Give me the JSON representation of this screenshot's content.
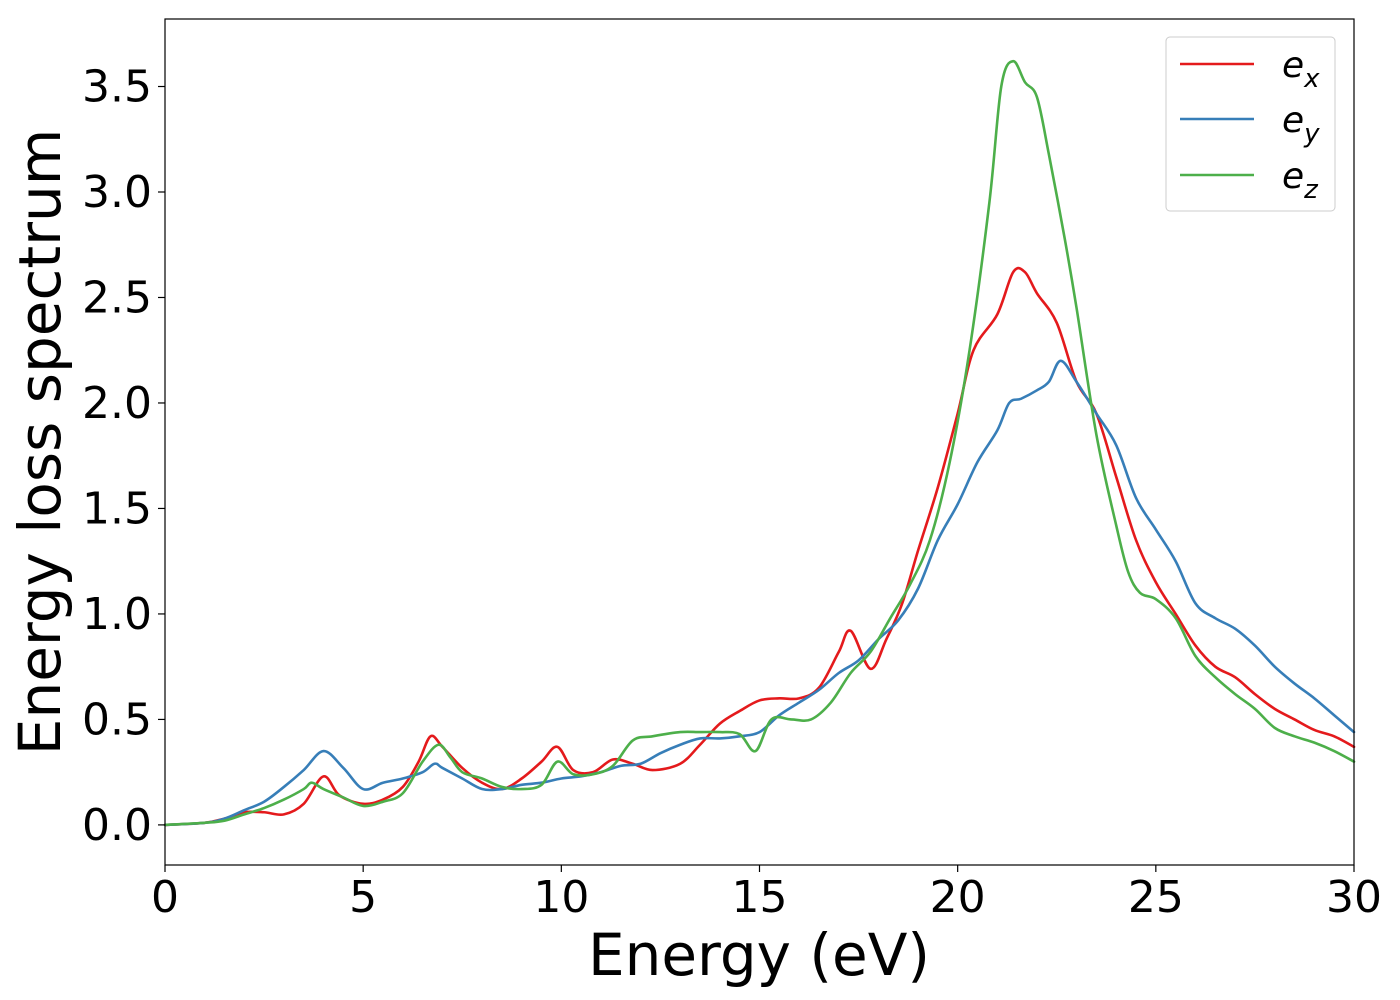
{
  "chart_data": {
    "type": "line",
    "title": "",
    "xlabel": "Energy (eV)",
    "ylabel": "Energy loss spectrum",
    "xlim": [
      0,
      30
    ],
    "ylim": [
      -0.19,
      3.82
    ],
    "xticks": [
      0,
      5,
      10,
      15,
      20,
      25,
      30
    ],
    "yticks": [
      0.0,
      0.5,
      1.0,
      1.5,
      2.0,
      2.5,
      3.0,
      3.5
    ],
    "xtick_labels": [
      "0",
      "5",
      "10",
      "15",
      "20",
      "25",
      "30"
    ],
    "ytick_labels": [
      "0.0",
      "0.5",
      "1.0",
      "1.5",
      "2.0",
      "2.5",
      "3.0",
      "3.5"
    ],
    "grid": false,
    "legend_position": "top-right",
    "series": [
      {
        "name": "e_x",
        "label_base": "e",
        "label_sub": "x",
        "color": "#e41a1c",
        "x": [
          0,
          1,
          1.5,
          2,
          2.5,
          3,
          3.5,
          4,
          4.4,
          5,
          5.5,
          6,
          6.4,
          6.7,
          7,
          7.5,
          8,
          8.5,
          9,
          9.5,
          9.9,
          10.3,
          10.8,
          11.3,
          11.8,
          12.3,
          13,
          13.5,
          14,
          14.5,
          15,
          15.5,
          16,
          16.5,
          17,
          17.3,
          17.8,
          18.2,
          18.6,
          19,
          19.5,
          20,
          20.4,
          21,
          21.4,
          21.7,
          22,
          22.5,
          23,
          23.5,
          24,
          24.5,
          25,
          25.5,
          26,
          26.5,
          27,
          27.5,
          28,
          28.5,
          29,
          29.5,
          30
        ],
        "y": [
          0.0,
          0.01,
          0.03,
          0.06,
          0.06,
          0.05,
          0.1,
          0.23,
          0.14,
          0.1,
          0.12,
          0.18,
          0.3,
          0.42,
          0.37,
          0.27,
          0.2,
          0.17,
          0.22,
          0.3,
          0.37,
          0.26,
          0.25,
          0.31,
          0.29,
          0.26,
          0.29,
          0.38,
          0.48,
          0.54,
          0.59,
          0.6,
          0.6,
          0.65,
          0.82,
          0.92,
          0.74,
          0.88,
          1.05,
          1.3,
          1.6,
          1.95,
          2.25,
          2.42,
          2.62,
          2.62,
          2.52,
          2.38,
          2.1,
          1.95,
          1.65,
          1.35,
          1.15,
          1.0,
          0.85,
          0.75,
          0.7,
          0.62,
          0.55,
          0.5,
          0.45,
          0.42,
          0.37
        ]
      },
      {
        "name": "e_y",
        "label_base": "e",
        "label_sub": "y",
        "color": "#377eb8",
        "x": [
          0,
          1,
          1.5,
          2,
          2.5,
          3,
          3.5,
          4,
          4.5,
          5,
          5.5,
          6,
          6.5,
          6.8,
          7,
          7.5,
          8,
          8.5,
          9,
          9.5,
          10,
          10.5,
          11,
          11.5,
          12,
          12.5,
          13,
          13.5,
          14,
          14.5,
          15,
          15.5,
          16,
          16.5,
          17,
          17.5,
          18,
          18.5,
          19,
          19.5,
          20,
          20.5,
          21,
          21.3,
          21.6,
          22,
          22.3,
          22.6,
          23,
          23.5,
          24,
          24.5,
          25,
          25.5,
          26,
          26.5,
          27,
          27.5,
          28,
          28.5,
          29,
          29.5,
          30
        ],
        "y": [
          0.0,
          0.01,
          0.03,
          0.07,
          0.11,
          0.18,
          0.26,
          0.35,
          0.27,
          0.17,
          0.2,
          0.22,
          0.25,
          0.29,
          0.27,
          0.22,
          0.17,
          0.17,
          0.19,
          0.2,
          0.22,
          0.23,
          0.25,
          0.28,
          0.29,
          0.34,
          0.38,
          0.41,
          0.41,
          0.42,
          0.44,
          0.52,
          0.58,
          0.64,
          0.72,
          0.78,
          0.88,
          0.97,
          1.12,
          1.35,
          1.52,
          1.72,
          1.87,
          2.0,
          2.02,
          2.06,
          2.1,
          2.2,
          2.1,
          1.95,
          1.8,
          1.55,
          1.4,
          1.25,
          1.05,
          0.98,
          0.93,
          0.85,
          0.75,
          0.67,
          0.6,
          0.52,
          0.44
        ]
      },
      {
        "name": "e_z",
        "label_base": "e",
        "label_sub": "z",
        "color": "#4daf4a",
        "x": [
          0,
          1,
          1.5,
          2,
          2.5,
          3,
          3.5,
          3.7,
          4,
          4.5,
          5,
          5.5,
          6,
          6.5,
          6.9,
          7.2,
          7.5,
          8,
          8.5,
          9,
          9.5,
          9.9,
          10.3,
          10.8,
          11.3,
          11.8,
          12.3,
          13,
          13.5,
          14,
          14.5,
          14.9,
          15.3,
          15.8,
          16.3,
          16.8,
          17.3,
          17.8,
          18.3,
          18.8,
          19.3,
          19.8,
          20.3,
          20.8,
          21.1,
          21.4,
          21.7,
          22,
          22.3,
          22.7,
          23,
          23.5,
          24,
          24.3,
          24.6,
          25,
          25.5,
          26,
          26.5,
          27,
          27.5,
          28,
          28.5,
          29,
          29.5,
          30
        ],
        "y": [
          0.0,
          0.01,
          0.02,
          0.05,
          0.08,
          0.12,
          0.17,
          0.2,
          0.17,
          0.13,
          0.09,
          0.11,
          0.15,
          0.3,
          0.38,
          0.32,
          0.25,
          0.22,
          0.18,
          0.17,
          0.19,
          0.3,
          0.24,
          0.24,
          0.28,
          0.4,
          0.42,
          0.44,
          0.44,
          0.44,
          0.43,
          0.35,
          0.5,
          0.5,
          0.5,
          0.58,
          0.72,
          0.82,
          0.98,
          1.14,
          1.35,
          1.72,
          2.25,
          2.95,
          3.5,
          3.62,
          3.52,
          3.45,
          3.18,
          2.78,
          2.45,
          1.85,
          1.42,
          1.2,
          1.1,
          1.07,
          0.98,
          0.8,
          0.7,
          0.62,
          0.55,
          0.46,
          0.42,
          0.39,
          0.35,
          0.3
        ]
      }
    ]
  }
}
